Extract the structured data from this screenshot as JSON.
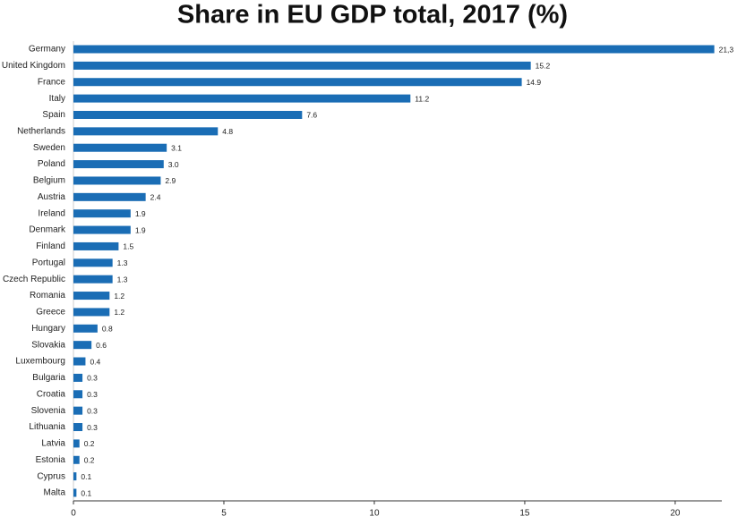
{
  "chart_data": {
    "type": "hbar",
    "title": "Share in EU GDP total, 2017 (%)",
    "categories": [
      "Germany",
      "United Kingdom",
      "France",
      "Italy",
      "Spain",
      "Netherlands",
      "Sweden",
      "Poland",
      "Belgium",
      "Austria",
      "Ireland",
      "Denmark",
      "Finland",
      "Portugal",
      "Czech Republic",
      "Romania",
      "Greece",
      "Hungary",
      "Slovakia",
      "Luxembourg",
      "Bulgaria",
      "Croatia",
      "Slovenia",
      "Lithuania",
      "Latvia",
      "Estonia",
      "Cyprus",
      "Malta"
    ],
    "values": [
      21.3,
      15.2,
      14.9,
      11.2,
      7.6,
      4.8,
      3.1,
      3.0,
      2.9,
      2.4,
      1.9,
      1.9,
      1.5,
      1.3,
      1.3,
      1.2,
      1.2,
      0.8,
      0.6,
      0.4,
      0.3,
      0.3,
      0.3,
      0.3,
      0.2,
      0.2,
      0.1,
      0.1
    ],
    "value_labels": [
      "21,3",
      "15.2",
      "14.9",
      "11.2",
      "7.6",
      "4.8",
      "3.1",
      "3.0",
      "2.9",
      "2.4",
      "1.9",
      "1.9",
      "1.5",
      "1.3",
      "1.3",
      "1.2",
      "1.2",
      "0.8",
      "0.6",
      "0.4",
      "0.3",
      "0.3",
      "0.3",
      "0.3",
      "0.2",
      "0.2",
      "0.1",
      "0.1"
    ],
    "color": "#1a6db5",
    "xlim": [
      0,
      21.55
    ],
    "xticks": [
      0,
      5,
      10,
      15,
      20
    ],
    "grid": false
  }
}
